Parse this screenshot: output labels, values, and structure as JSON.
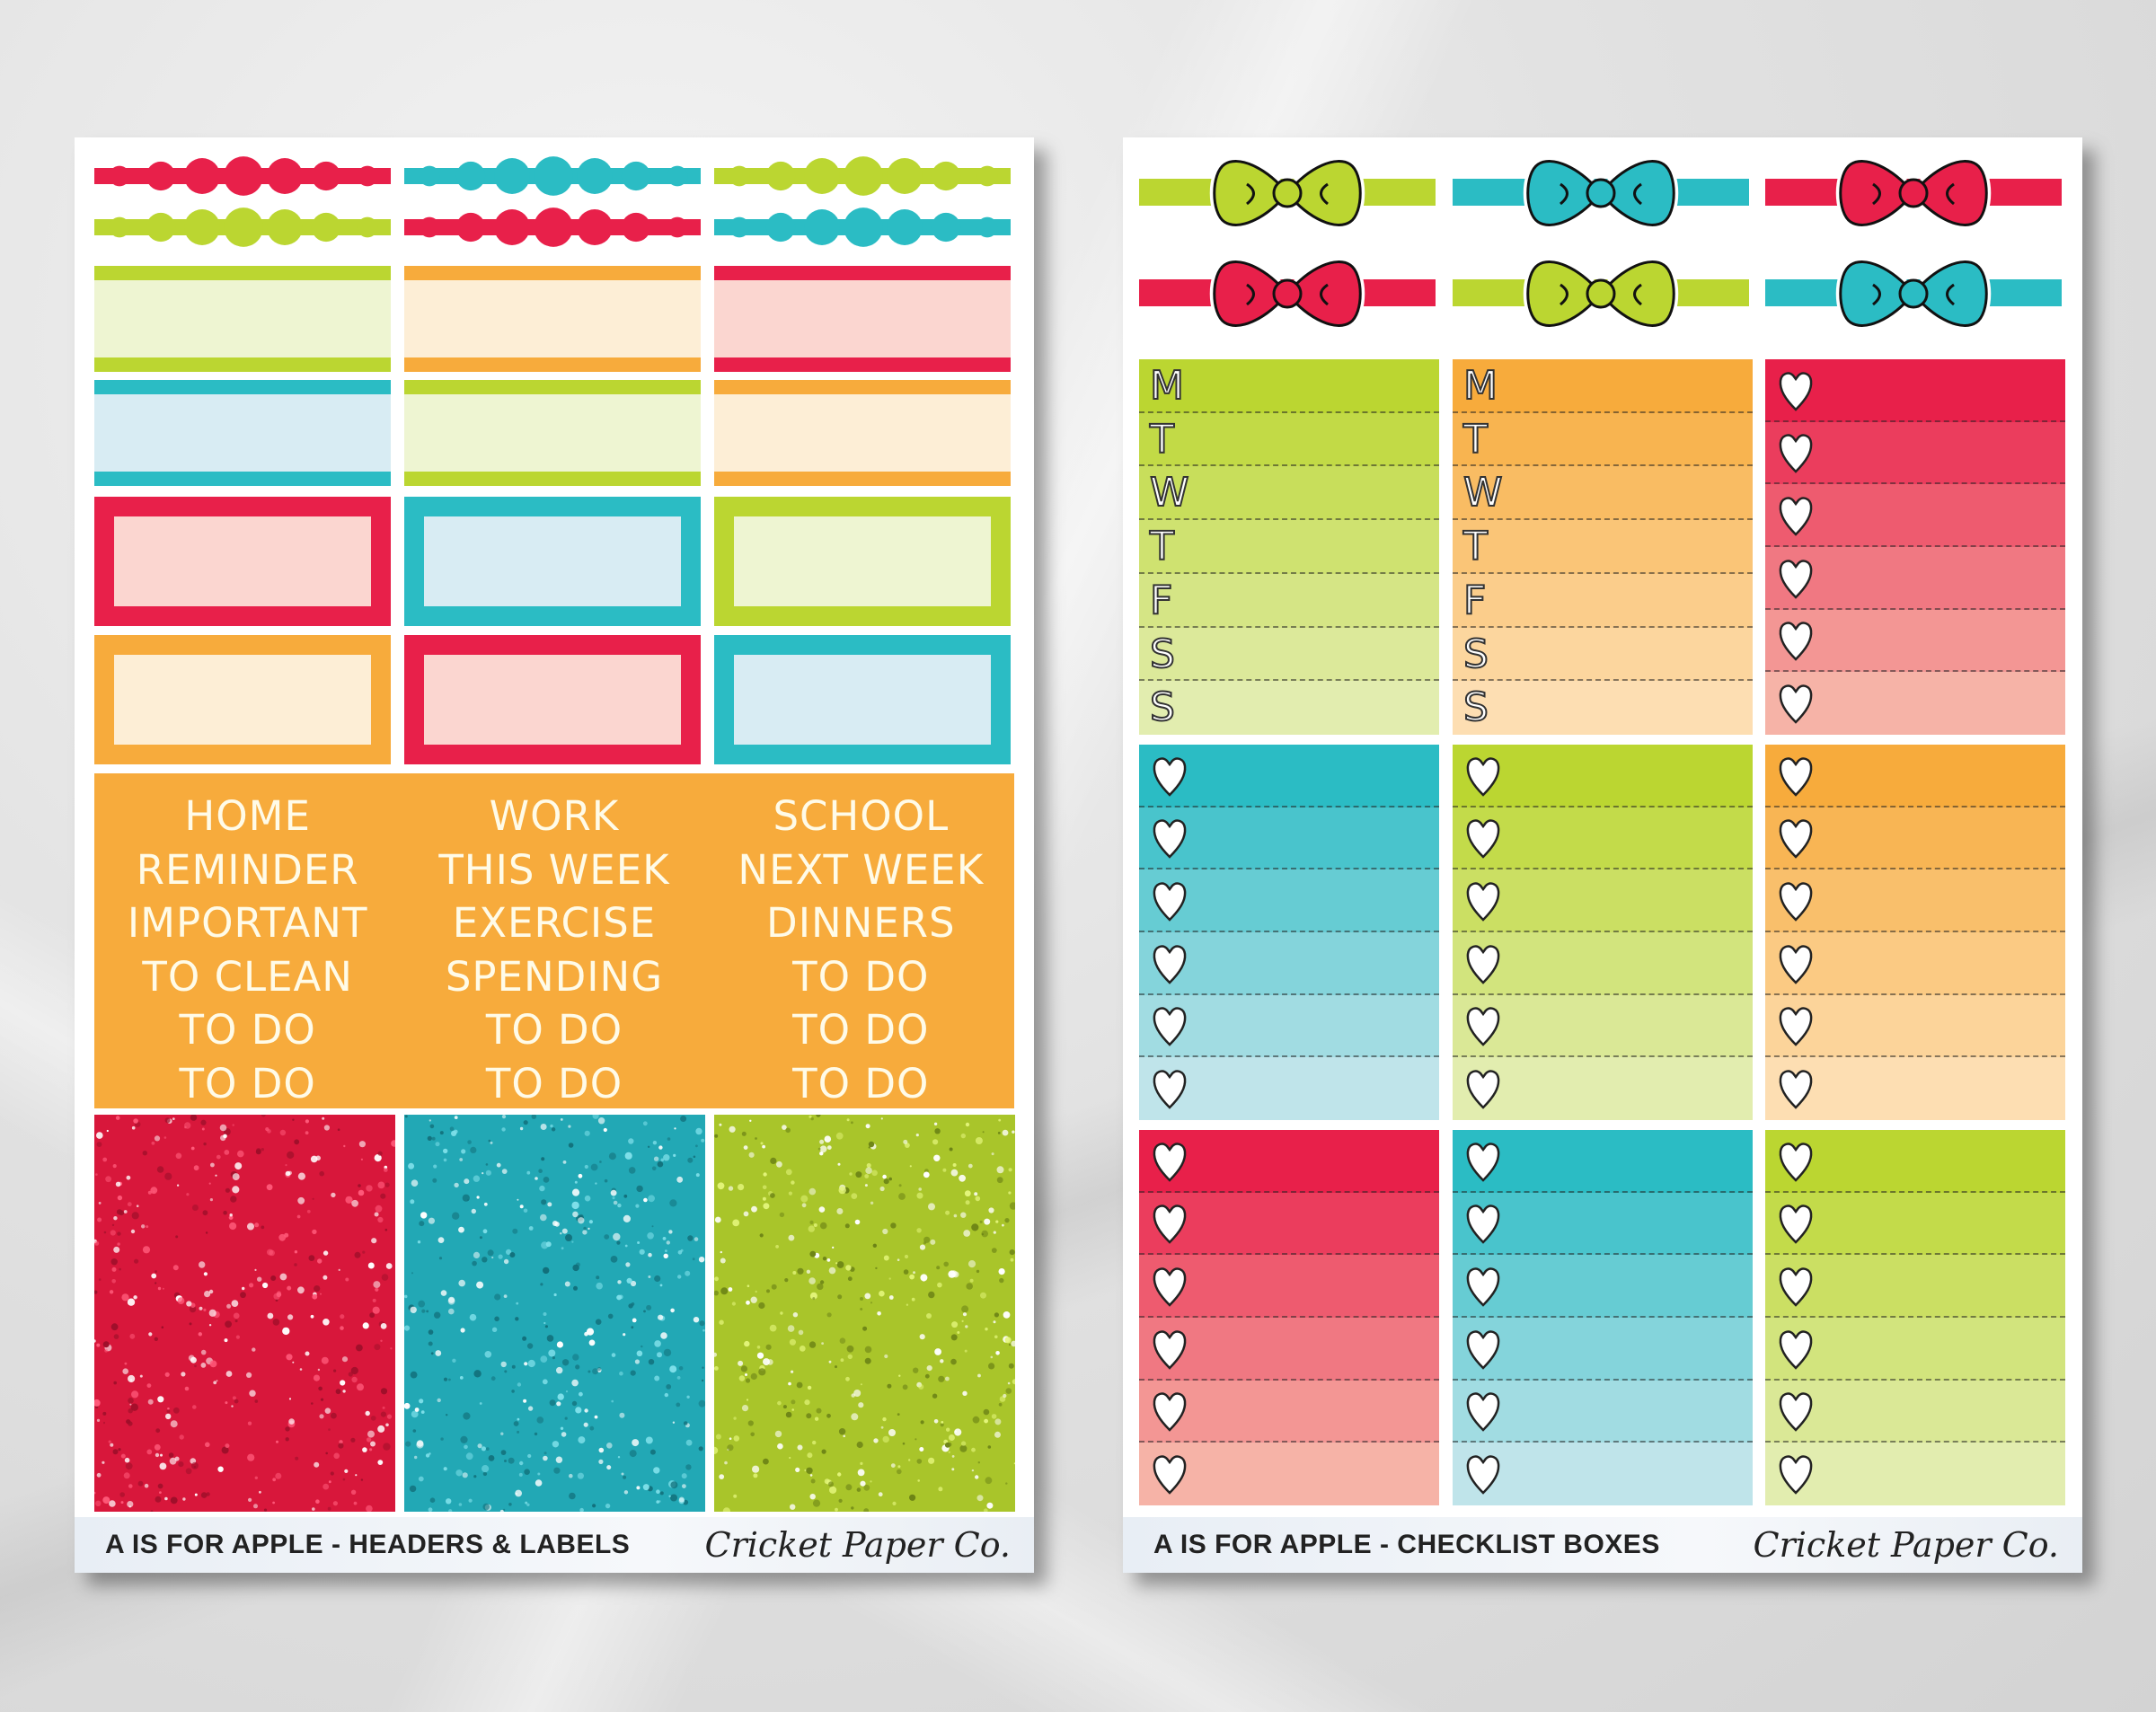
{
  "left_sheet": {
    "footer_title": "A IS FOR APPLE - HEADERS & LABELS",
    "brand": "Cricket Paper Co.",
    "word_columns": [
      [
        "HOME",
        "REMINDER",
        "IMPORTANT",
        "TO CLEAN",
        "TO DO",
        "TO DO"
      ],
      [
        "WORK",
        "THIS WEEK",
        "EXERCISE",
        "SPENDING",
        "TO DO",
        "TO DO"
      ],
      [
        "SCHOOL",
        "NEXT WEEK",
        "DINNERS",
        "TO DO",
        "TO DO",
        "TO DO"
      ]
    ]
  },
  "right_sheet": {
    "footer_title": "A IS FOR APPLE - CHECKLIST BOXES",
    "brand": "Cricket Paper Co.",
    "weekday_letters": [
      "M",
      "T",
      "W",
      "T",
      "F",
      "S",
      "S"
    ]
  },
  "colors": {
    "red": "#e8204a",
    "teal": "#2bbcc4",
    "green": "#bbd631",
    "orange": "#f7ab3c"
  }
}
